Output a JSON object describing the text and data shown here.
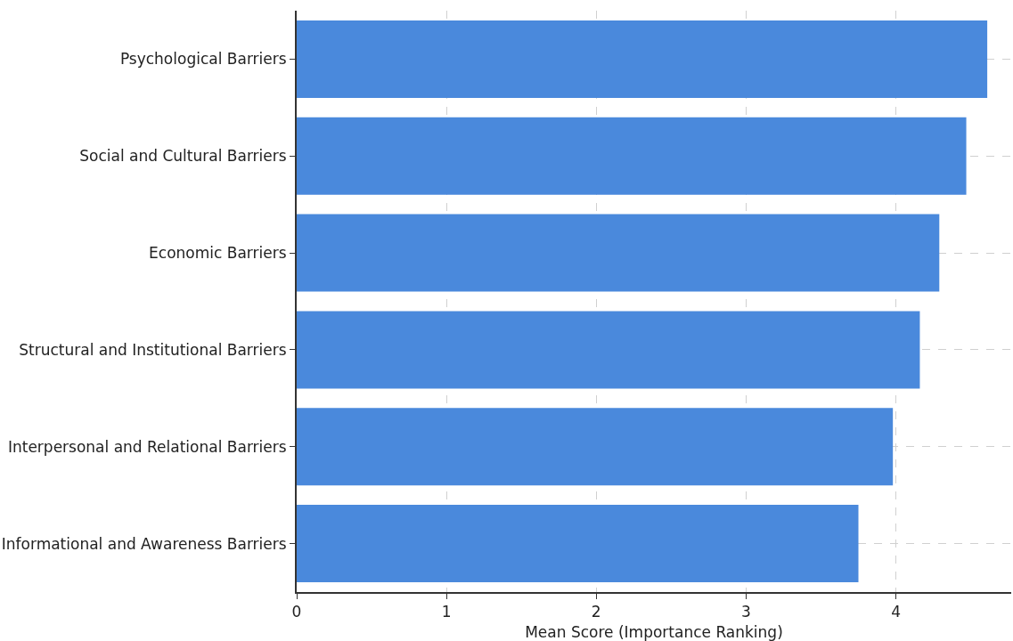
{
  "chart_data": {
    "type": "bar",
    "orientation": "horizontal",
    "xlabel": "Mean Score (Importance Ranking)",
    "categories": [
      "Psychological Barriers",
      "Social and Cultural Barriers",
      "Economic Barriers",
      "Structural and Institutional Barriers",
      "Interpersonal and Relational Barriers",
      "Informational and Awareness Barriers"
    ],
    "values": [
      4.61,
      4.47,
      4.29,
      4.16,
      3.98,
      3.75
    ],
    "color": "#4a89dc",
    "xlim": [
      0,
      4.77
    ],
    "xticks": [
      0,
      1,
      2,
      3,
      4
    ],
    "grid": true
  }
}
